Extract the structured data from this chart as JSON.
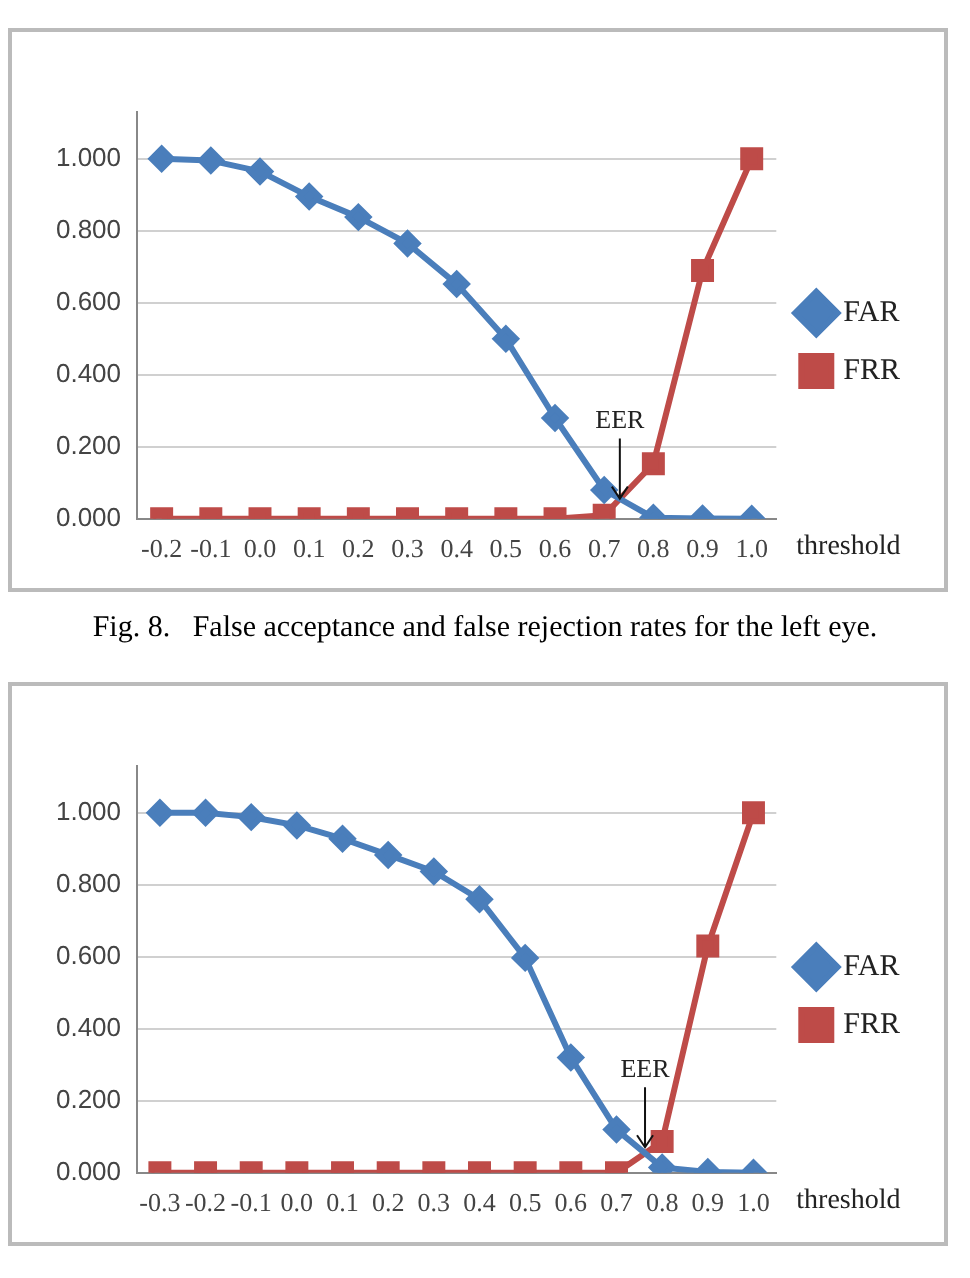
{
  "chart_data": [
    {
      "type": "line",
      "xlabel": "threshold",
      "categories": [
        "-0.2",
        "-0.1",
        "0.0",
        "0.1",
        "0.2",
        "0.3",
        "0.4",
        "0.5",
        "0.6",
        "0.7",
        "0.8",
        "0.9",
        "1.0"
      ],
      "series": [
        {
          "name": "FAR",
          "color": "#4a7ebb",
          "marker": "diamond",
          "values": [
            1.0,
            0.995,
            0.965,
            0.895,
            0.838,
            0.765,
            0.652,
            0.5,
            0.28,
            0.08,
            0.003,
            0.001,
            0.0
          ]
        },
        {
          "name": "FRR",
          "color": "#be4b48",
          "marker": "square",
          "values": [
            0,
            0,
            0,
            0,
            0,
            0,
            0,
            0,
            0,
            0.01,
            0.153,
            0.69,
            1.0
          ]
        }
      ],
      "ylim": [
        0,
        1.13
      ],
      "yticks": [
        {
          "value": 0,
          "label": "0.000"
        },
        {
          "value": 0.2,
          "label": "0.200"
        },
        {
          "value": 0.4,
          "label": "0.400"
        },
        {
          "value": 0.6,
          "label": "0.600"
        },
        {
          "value": 0.8,
          "label": "0.800"
        },
        {
          "value": 1,
          "label": "1.000"
        }
      ],
      "grid": "y",
      "legend": "right",
      "line_style": "solid",
      "annotations": [
        {
          "text": "EER",
          "y": 0.045
        },
        "Fig. 8.   False acceptance and false rejection rates for the left eye."
      ]
    },
    {
      "type": "line",
      "xlabel": "threshold",
      "categories": [
        "-0.3",
        "-0.2",
        "-0.1",
        "0.0",
        "0.1",
        "0.2",
        "0.3",
        "0.4",
        "0.5",
        "0.6",
        "0.7",
        "0.8",
        "0.9",
        "1.0"
      ],
      "series": [
        {
          "name": "FAR",
          "color": "#4a7ebb",
          "marker": "diamond",
          "values": [
            1.0,
            1.0,
            0.988,
            0.965,
            0.928,
            0.883,
            0.837,
            0.76,
            0.597,
            0.32,
            0.12,
            0.015,
            0.002,
            0.0
          ]
        },
        {
          "name": "FRR",
          "color": "#be4b48",
          "marker": "square",
          "values": [
            0,
            0,
            0,
            0,
            0,
            0,
            0,
            0,
            0,
            0,
            0,
            0.087,
            0.63,
            1.0
          ]
        }
      ],
      "ylim": [
        0,
        1.13
      ],
      "yticks": [
        {
          "value": 0,
          "label": "0.000"
        },
        {
          "value": 0.2,
          "label": "0.200"
        },
        {
          "value": 0.4,
          "label": "0.400"
        },
        {
          "value": 0.6,
          "label": "0.600"
        },
        {
          "value": 0.8,
          "label": "0.800"
        },
        {
          "value": 1,
          "label": "1.000"
        }
      ],
      "grid": "y",
      "legend": "right",
      "line_style": "solid",
      "annotations": [
        {
          "text": "EER",
          "y": 0.06
        }
      ]
    }
  ]
}
